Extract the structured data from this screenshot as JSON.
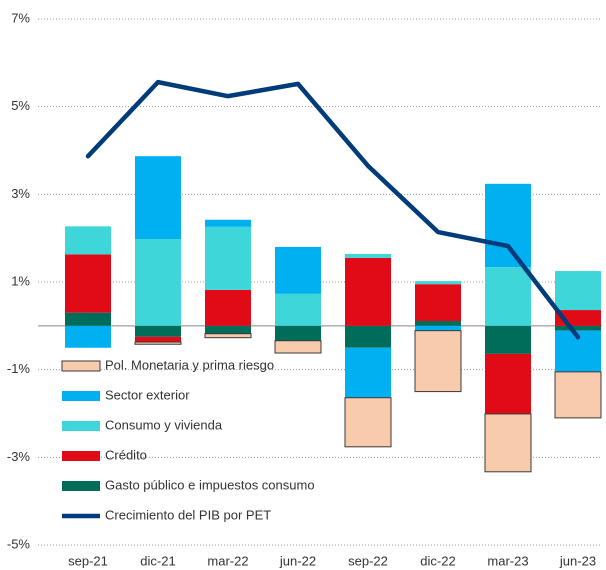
{
  "chart_data": {
    "type": "bar",
    "categories": [
      "sep-21",
      "dic-21",
      "mar-22",
      "jun-22",
      "sep-22",
      "dic-22",
      "mar-23",
      "jun-23"
    ],
    "series": [
      {
        "name": "Pol. Monetaria y prima riesgo",
        "color": "#f8cbad",
        "values": [
          0,
          -0.05,
          -0.09,
          -0.28,
          -1.12,
          -1.39,
          -1.32,
          -1.05
        ]
      },
      {
        "name": "Sector exterior",
        "color": "#00b0f0",
        "values": [
          -0.5,
          1.89,
          0.16,
          1.07,
          -1.14,
          -0.11,
          1.9,
          -0.94
        ]
      },
      {
        "name": "Consumo y vivienda",
        "color": "#3ed6d9",
        "values": [
          0.64,
          1.98,
          1.44,
          0.73,
          0.09,
          0.07,
          1.34,
          0.89
        ]
      },
      {
        "name": "Crédito",
        "color": "#e00b16",
        "values": [
          1.33,
          -0.12,
          0.82,
          0,
          1.55,
          0.84,
          -1.37,
          0.36
        ]
      },
      {
        "name": "Gasto público e impuestos consumo",
        "color": "#006d5b",
        "values": [
          0.3,
          -0.25,
          -0.18,
          -0.34,
          -0.5,
          0.11,
          -0.64,
          -0.11
        ]
      },
      {
        "name": "Crecimiento del PIB por PET",
        "color": "#003b7a",
        "type": "line",
        "values": [
          3.87,
          5.56,
          5.24,
          5.52,
          3.65,
          2.14,
          1.82,
          -0.26
        ]
      }
    ],
    "ylim": [
      -5,
      7
    ],
    "yticks": [
      {
        "value": -5,
        "label": "-5%"
      },
      {
        "value": -3,
        "label": "-3%"
      },
      {
        "value": -1,
        "label": "-1%"
      },
      {
        "value": 1,
        "label": "1%"
      },
      {
        "value": 3,
        "label": "3%"
      },
      {
        "value": 5,
        "label": "5%"
      },
      {
        "value": 7,
        "label": "7%"
      }
    ],
    "grid": true
  }
}
